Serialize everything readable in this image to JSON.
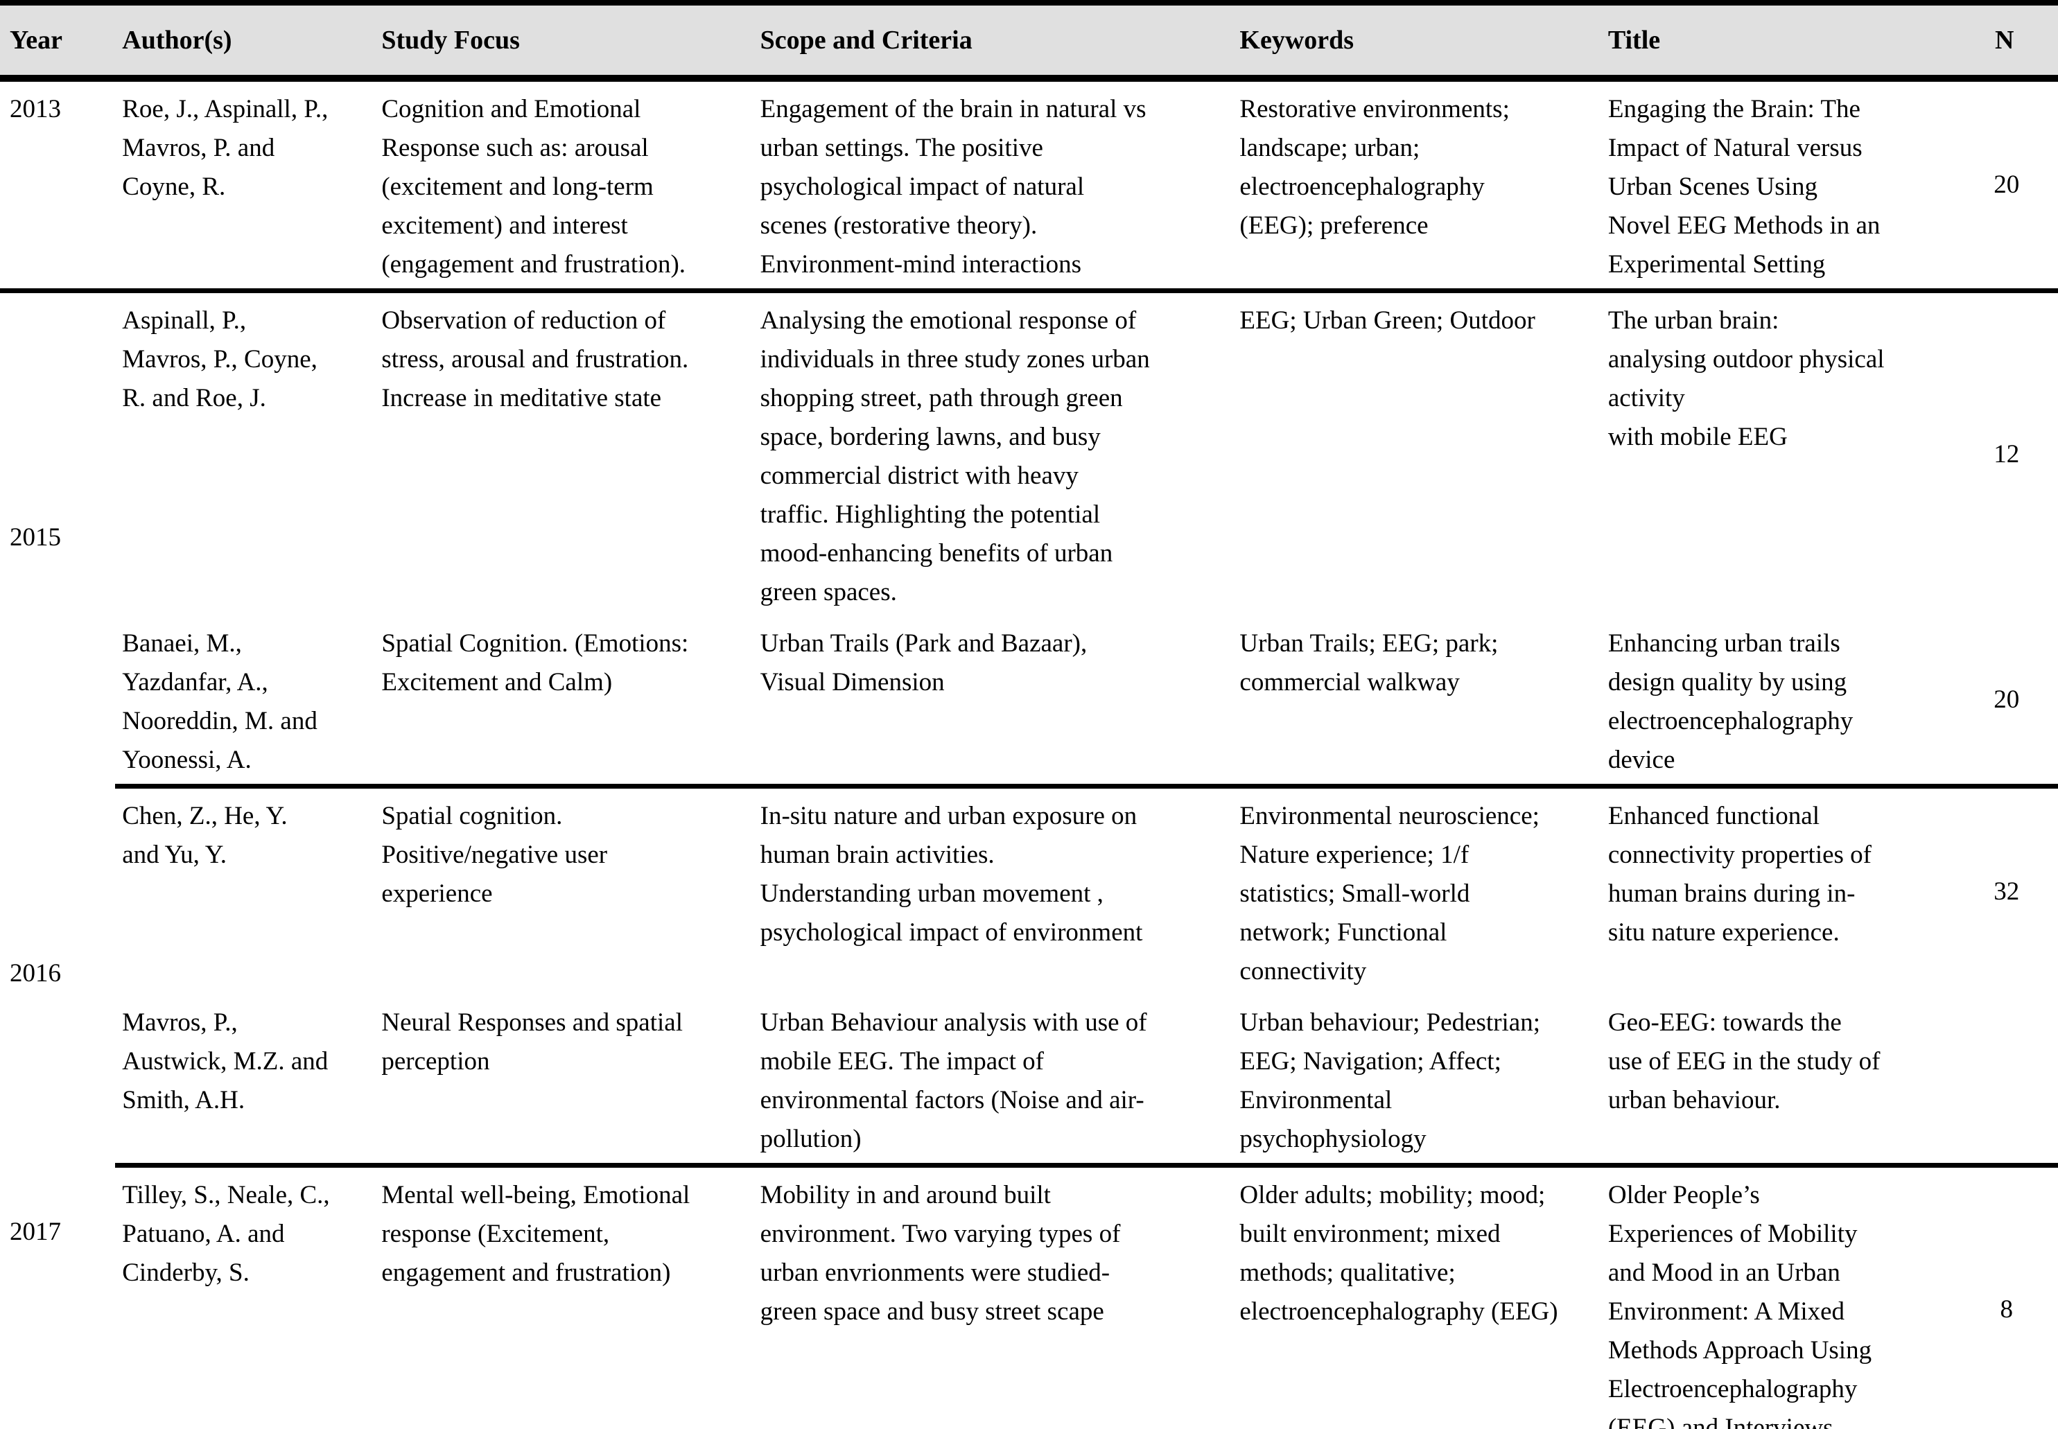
{
  "style": {
    "header_bg": "#e0e0e0",
    "rule_color": "#000000",
    "text_color": "#000000"
  },
  "table": {
    "columns": [
      {
        "key": "year",
        "label": "Year"
      },
      {
        "key": "authors",
        "label": "Author(s)"
      },
      {
        "key": "study_focus",
        "label": "Study Focus"
      },
      {
        "key": "scope",
        "label": "Scope and Criteria"
      },
      {
        "key": "keywords",
        "label": "Keywords"
      },
      {
        "key": "title",
        "label": "Title"
      },
      {
        "key": "n",
        "label": "N"
      }
    ],
    "groups": [
      {
        "year": "2013",
        "year_align": "top",
        "studies": [
          {
            "authors": "Roe, J., Aspinall, P.,\nMavros, P. and\nCoyne, R.",
            "study_focus": "Cognition and Emotional\nResponse such as: arousal\n(excitement and long-term\nexcitement) and interest\n(engagement and frustration).",
            "scope": "Engagement of the brain in natural vs\nurban settings. The positive\npsychological impact of natural\nscenes (restorative theory).\nEnvironment-mind interactions",
            "keywords": "Restorative environments;\nlandscape; urban;\nelectroencephalography\n(EEG); preference",
            "title": "Engaging the Brain: The\nImpact of Natural versus\nUrban Scenes Using\nNovel EEG Methods in an\nExperimental Setting",
            "n": "20"
          }
        ]
      },
      {
        "year": "2015",
        "year_align": "middle",
        "studies": [
          {
            "authors": "Aspinall, P.,\nMavros, P., Coyne,\nR. and Roe, J.",
            "study_focus": "Observation of reduction of\nstress, arousal and frustration.\nIncrease in meditative state",
            "scope": "Analysing the emotional response of\nindividuals in three study zones urban\nshopping street, path through green\nspace, bordering lawns, and busy\ncommercial district with heavy\ntraffic. Highlighting the potential\nmood-enhancing benefits of urban\ngreen spaces.",
            "keywords": "EEG; Urban Green; Outdoor",
            "title": "The urban brain:\nanalysing outdoor physical\nactivity\nwith mobile EEG",
            "n": "12"
          },
          {
            "authors": "Banaei, M.,\nYazdanfar, A.,\nNooreddin, M. and\nYoonessi, A.",
            "study_focus": "Spatial Cognition. (Emotions:\nExcitement and Calm)",
            "scope": "Urban Trails (Park and Bazaar),\nVisual Dimension",
            "keywords": "Urban Trails; EEG; park;\ncommercial walkway",
            "title": "Enhancing urban trails\ndesign quality by using\nelectroencephalography\ndevice",
            "n": "20"
          }
        ]
      },
      {
        "year": "2016",
        "year_align": "middle",
        "studies": [
          {
            "authors": "Chen, Z., He, Y.\nand Yu, Y.",
            "study_focus": "Spatial cognition.\nPositive/negative user\nexperience",
            "scope": "In-situ nature and urban exposure on\nhuman brain activities.\nUnderstanding urban movement ,\npsychological impact of environment",
            "keywords": "Environmental neuroscience;\nNature experience; 1/f\nstatistics; Small-world\nnetwork; Functional\nconnectivity",
            "title": "Enhanced functional\nconnectivity properties of\nhuman brains during in-\nsitu nature experience.",
            "n": "32"
          },
          {
            "authors": "Mavros, P.,\nAustwick, M.Z. and\nSmith, A.H.",
            "study_focus": "Neural Responses and spatial\nperception",
            "scope": "Urban Behaviour analysis with use of\nmobile EEG. The impact of\nenvironmental factors (Noise and air-\npollution)",
            "keywords": "Urban behaviour; Pedestrian;\nEEG; Navigation; Affect;\nEnvironmental\npsychophysiology",
            "title": "Geo-EEG: towards the\nuse of EEG in the study of\nurban behaviour.",
            "n": ""
          }
        ]
      },
      {
        "year": "2017",
        "year_align": "second-line",
        "studies": [
          {
            "authors": "Tilley, S., Neale, C.,\nPatuano, A. and\nCinderby, S.",
            "study_focus": "Mental well-being, Emotional\nresponse (Excitement,\nengagement and frustration)",
            "scope": "Mobility in and around built\nenvironment. Two varying types of\nurban envrionments were studied-\ngreen space and busy street scape",
            "keywords": "Older adults; mobility; mood;\nbuilt environment; mixed\nmethods; qualitative;\nelectroencephalography (EEG)",
            "title": "Older People’s\nExperiences of Mobility\nand Mood in an Urban\nEnvironment: A Mixed\nMethods Approach Using\nElectroencephalography\n(EEG) and Interviews",
            "n": "8"
          }
        ]
      }
    ]
  }
}
